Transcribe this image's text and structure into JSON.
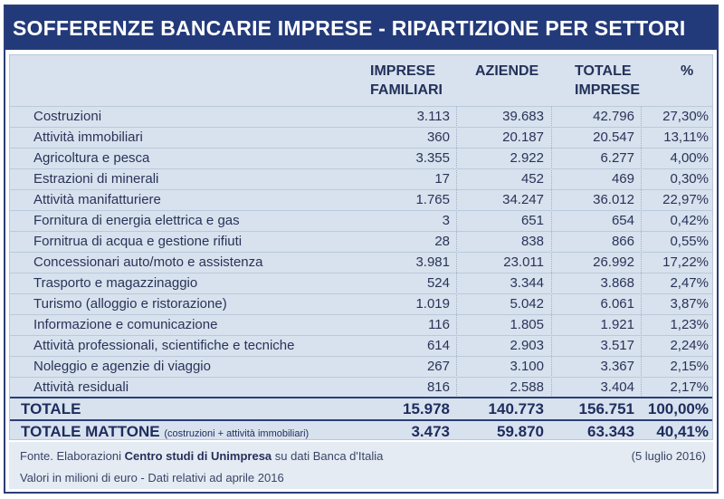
{
  "title": "SOFFERENZE BANCARIE IMPRESE - RIPARTIZIONE PER SETTORI",
  "headers": {
    "familiari": "IMPRESE\nFAMILIARI",
    "aziende": "AZIENDE",
    "totale": "TOTALE\nIMPRESE",
    "pct": "%"
  },
  "chart_data": {
    "type": "table",
    "columns": [
      "",
      "IMPRESE FAMILIARI",
      "AZIENDE",
      "TOTALE IMPRESE",
      "%"
    ],
    "rows": [
      {
        "sector": "Costruzioni",
        "familiari": "3.113",
        "aziende": "39.683",
        "totale": "42.796",
        "pct": "27,30%"
      },
      {
        "sector": "Attività immobiliari",
        "familiari": "360",
        "aziende": "20.187",
        "totale": "20.547",
        "pct": "13,11%"
      },
      {
        "sector": "Agricoltura e pesca",
        "familiari": "3.355",
        "aziende": "2.922",
        "totale": "6.277",
        "pct": "4,00%"
      },
      {
        "sector": "Estrazioni di minerali",
        "familiari": "17",
        "aziende": "452",
        "totale": "469",
        "pct": "0,30%"
      },
      {
        "sector": "Attività manifatturiere",
        "familiari": "1.765",
        "aziende": "34.247",
        "totale": "36.012",
        "pct": "22,97%"
      },
      {
        "sector": "Fornitura di energia elettrica e gas",
        "familiari": "3",
        "aziende": "651",
        "totale": "654",
        "pct": "0,42%"
      },
      {
        "sector": "Fornitrua di acqua e gestione rifiuti",
        "familiari": "28",
        "aziende": "838",
        "totale": "866",
        "pct": "0,55%"
      },
      {
        "sector": "Concessionari auto/moto e assistenza",
        "familiari": "3.981",
        "aziende": "23.011",
        "totale": "26.992",
        "pct": "17,22%"
      },
      {
        "sector": "Trasporto e magazzinaggio",
        "familiari": "524",
        "aziende": "3.344",
        "totale": "3.868",
        "pct": "2,47%"
      },
      {
        "sector": "Turismo (alloggio e ristorazione)",
        "familiari": "1.019",
        "aziende": "5.042",
        "totale": "6.061",
        "pct": "3,87%"
      },
      {
        "sector": "Informazione e comunicazione",
        "familiari": "116",
        "aziende": "1.805",
        "totale": "1.921",
        "pct": "1,23%"
      },
      {
        "sector": "Attività professionali, scientifiche e tecniche",
        "familiari": "614",
        "aziende": "2.903",
        "totale": "3.517",
        "pct": "2,24%"
      },
      {
        "sector": "Noleggio e agenzie di viaggio",
        "familiari": "267",
        "aziende": "3.100",
        "totale": "3.367",
        "pct": "2,15%"
      },
      {
        "sector": "Attività residuali",
        "familiari": "816",
        "aziende": "2.588",
        "totale": "3.404",
        "pct": "2,17%"
      }
    ]
  },
  "totale": {
    "label": "TOTALE",
    "familiari": "15.978",
    "aziende": "140.773",
    "totale": "156.751",
    "pct": "100,00%"
  },
  "totale_mattone": {
    "label": "TOTALE MATTONE",
    "note": "(costruzioni + attività immobiliari)",
    "familiari": "3.473",
    "aziende": "59.870",
    "totale": "63.343",
    "pct": "40,41%"
  },
  "footer": {
    "source_prefix": "Fonte. Elaborazioni",
    "source_bold": "Centro studi di Unimpresa",
    "source_suffix": "su dati Banca d'Italia",
    "date": "(5 luglio 2016)",
    "note": "Valori in milioni di euro - Dati relativi ad aprile 2016"
  },
  "colors": {
    "header_bar": "#233a7a",
    "table_bg": "#d7e2ee",
    "text": "#24305a"
  }
}
